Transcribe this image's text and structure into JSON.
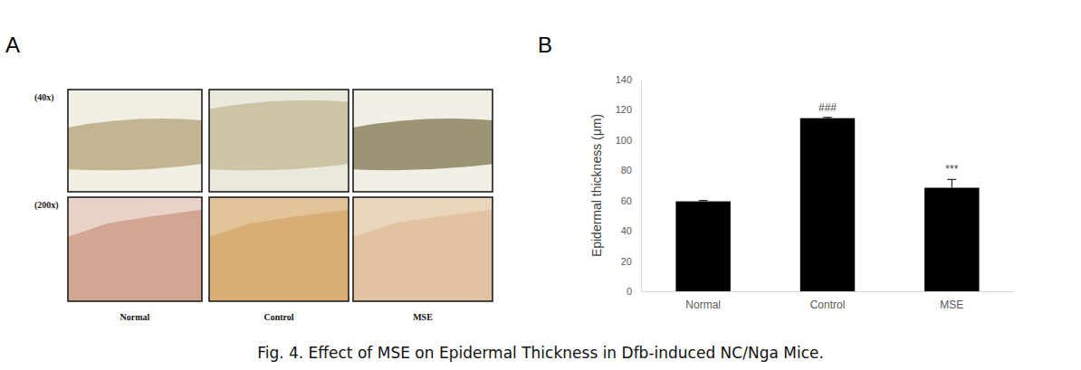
{
  "figure": {
    "caption": "Fig. 4. Effect of MSE on Epidermal Thickness in Dfb-induced NC/Nga Mice.",
    "panel_labels": [
      "A",
      "B"
    ],
    "micrographs": {
      "magnifications": [
        "(40x)",
        "(200x)"
      ],
      "groups": [
        "Normal",
        "Control",
        "MSE"
      ]
    }
  },
  "chart_data": {
    "type": "bar",
    "y_label": "Epidermal thickness (μm)",
    "categories": [
      "Normal",
      "Control",
      "MSE"
    ],
    "values": [
      59.5,
      114.5,
      68.5
    ],
    "errors": [
      0.5,
      0.5,
      5.5
    ],
    "annotations": [
      null,
      "###",
      "***"
    ],
    "color": "#000000",
    "ylim": [
      0,
      140
    ],
    "yticks": [
      0,
      20,
      40,
      60,
      80,
      100,
      120,
      140
    ],
    "grid": false
  }
}
